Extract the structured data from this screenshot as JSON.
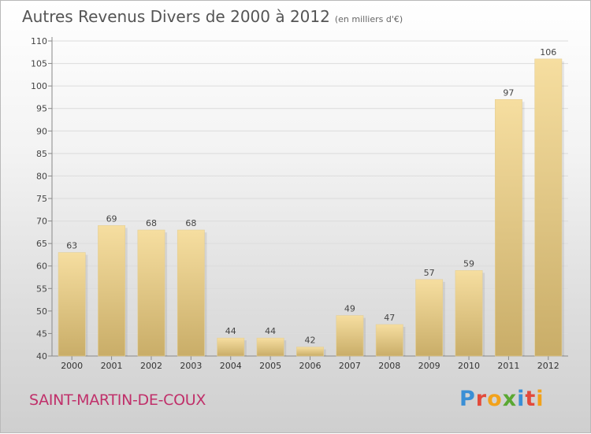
{
  "title": {
    "main": "Autres Revenus Divers de 2000 à 2012",
    "unit": "(en milliers d'€)"
  },
  "commune": "SAINT-MARTIN-DE-COUX",
  "logo": {
    "text": "Proxiti",
    "letters": [
      {
        "char": "P",
        "color": "#3a8fd6"
      },
      {
        "char": "r",
        "color": "#e24a3b"
      },
      {
        "char": "o",
        "color": "#f2a21b"
      },
      {
        "char": "x",
        "color": "#5aa832"
      },
      {
        "char": "i",
        "color": "#3a8fd6"
      },
      {
        "char": "t",
        "color": "#e24a3b"
      },
      {
        "char": "i",
        "color": "#f2a21b"
      }
    ]
  },
  "chart_data": {
    "type": "bar",
    "categories": [
      "2000",
      "2001",
      "2002",
      "2003",
      "2004",
      "2005",
      "2006",
      "2007",
      "2008",
      "2009",
      "2010",
      "2011",
      "2012"
    ],
    "values": [
      63,
      69,
      68,
      68,
      44,
      44,
      42,
      49,
      47,
      57,
      59,
      97,
      106
    ],
    "ylim": [
      40,
      110
    ],
    "yticks": [
      40,
      45,
      50,
      55,
      60,
      65,
      70,
      75,
      80,
      85,
      90,
      95,
      100,
      105,
      110
    ],
    "grid": true,
    "bar_color_top": "#f6dea0",
    "bar_color_bottom": "#c9ad68"
  }
}
